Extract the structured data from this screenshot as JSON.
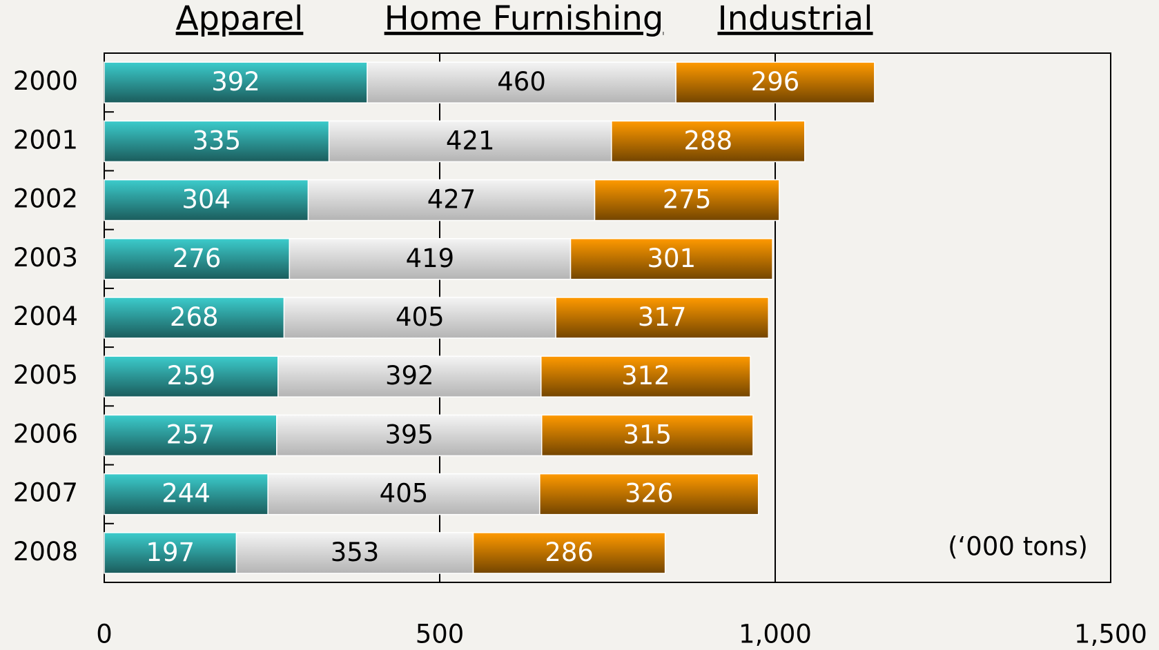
{
  "chart_data": {
    "type": "stacked_bar_horizontal",
    "categories": [
      "2000",
      "2001",
      "2002",
      "2003",
      "2004",
      "2005",
      "2006",
      "2007",
      "2008"
    ],
    "series": [
      {
        "name": "Apparel",
        "color": "#3ccccc",
        "label_color": "#ffffff",
        "values": [
          392,
          335,
          304,
          276,
          268,
          259,
          257,
          244,
          197
        ]
      },
      {
        "name": "Home Furnishing",
        "color": "#f4f4f4",
        "label_color": "#000000",
        "values": [
          460,
          421,
          427,
          419,
          405,
          392,
          395,
          405,
          353
        ]
      },
      {
        "name": "Industrial",
        "color": "#ff9a00",
        "label_color": "#ffffff",
        "values": [
          296,
          288,
          275,
          301,
          317,
          312,
          315,
          326,
          286
        ]
      }
    ],
    "xlim": [
      0,
      1500
    ],
    "xticks": [
      0,
      500,
      {
        "value": 1000,
        "label": "1,000"
      },
      {
        "value": 1500,
        "label": "1,500"
      }
    ],
    "grid": true,
    "annotation": "(‘000 tons)"
  }
}
